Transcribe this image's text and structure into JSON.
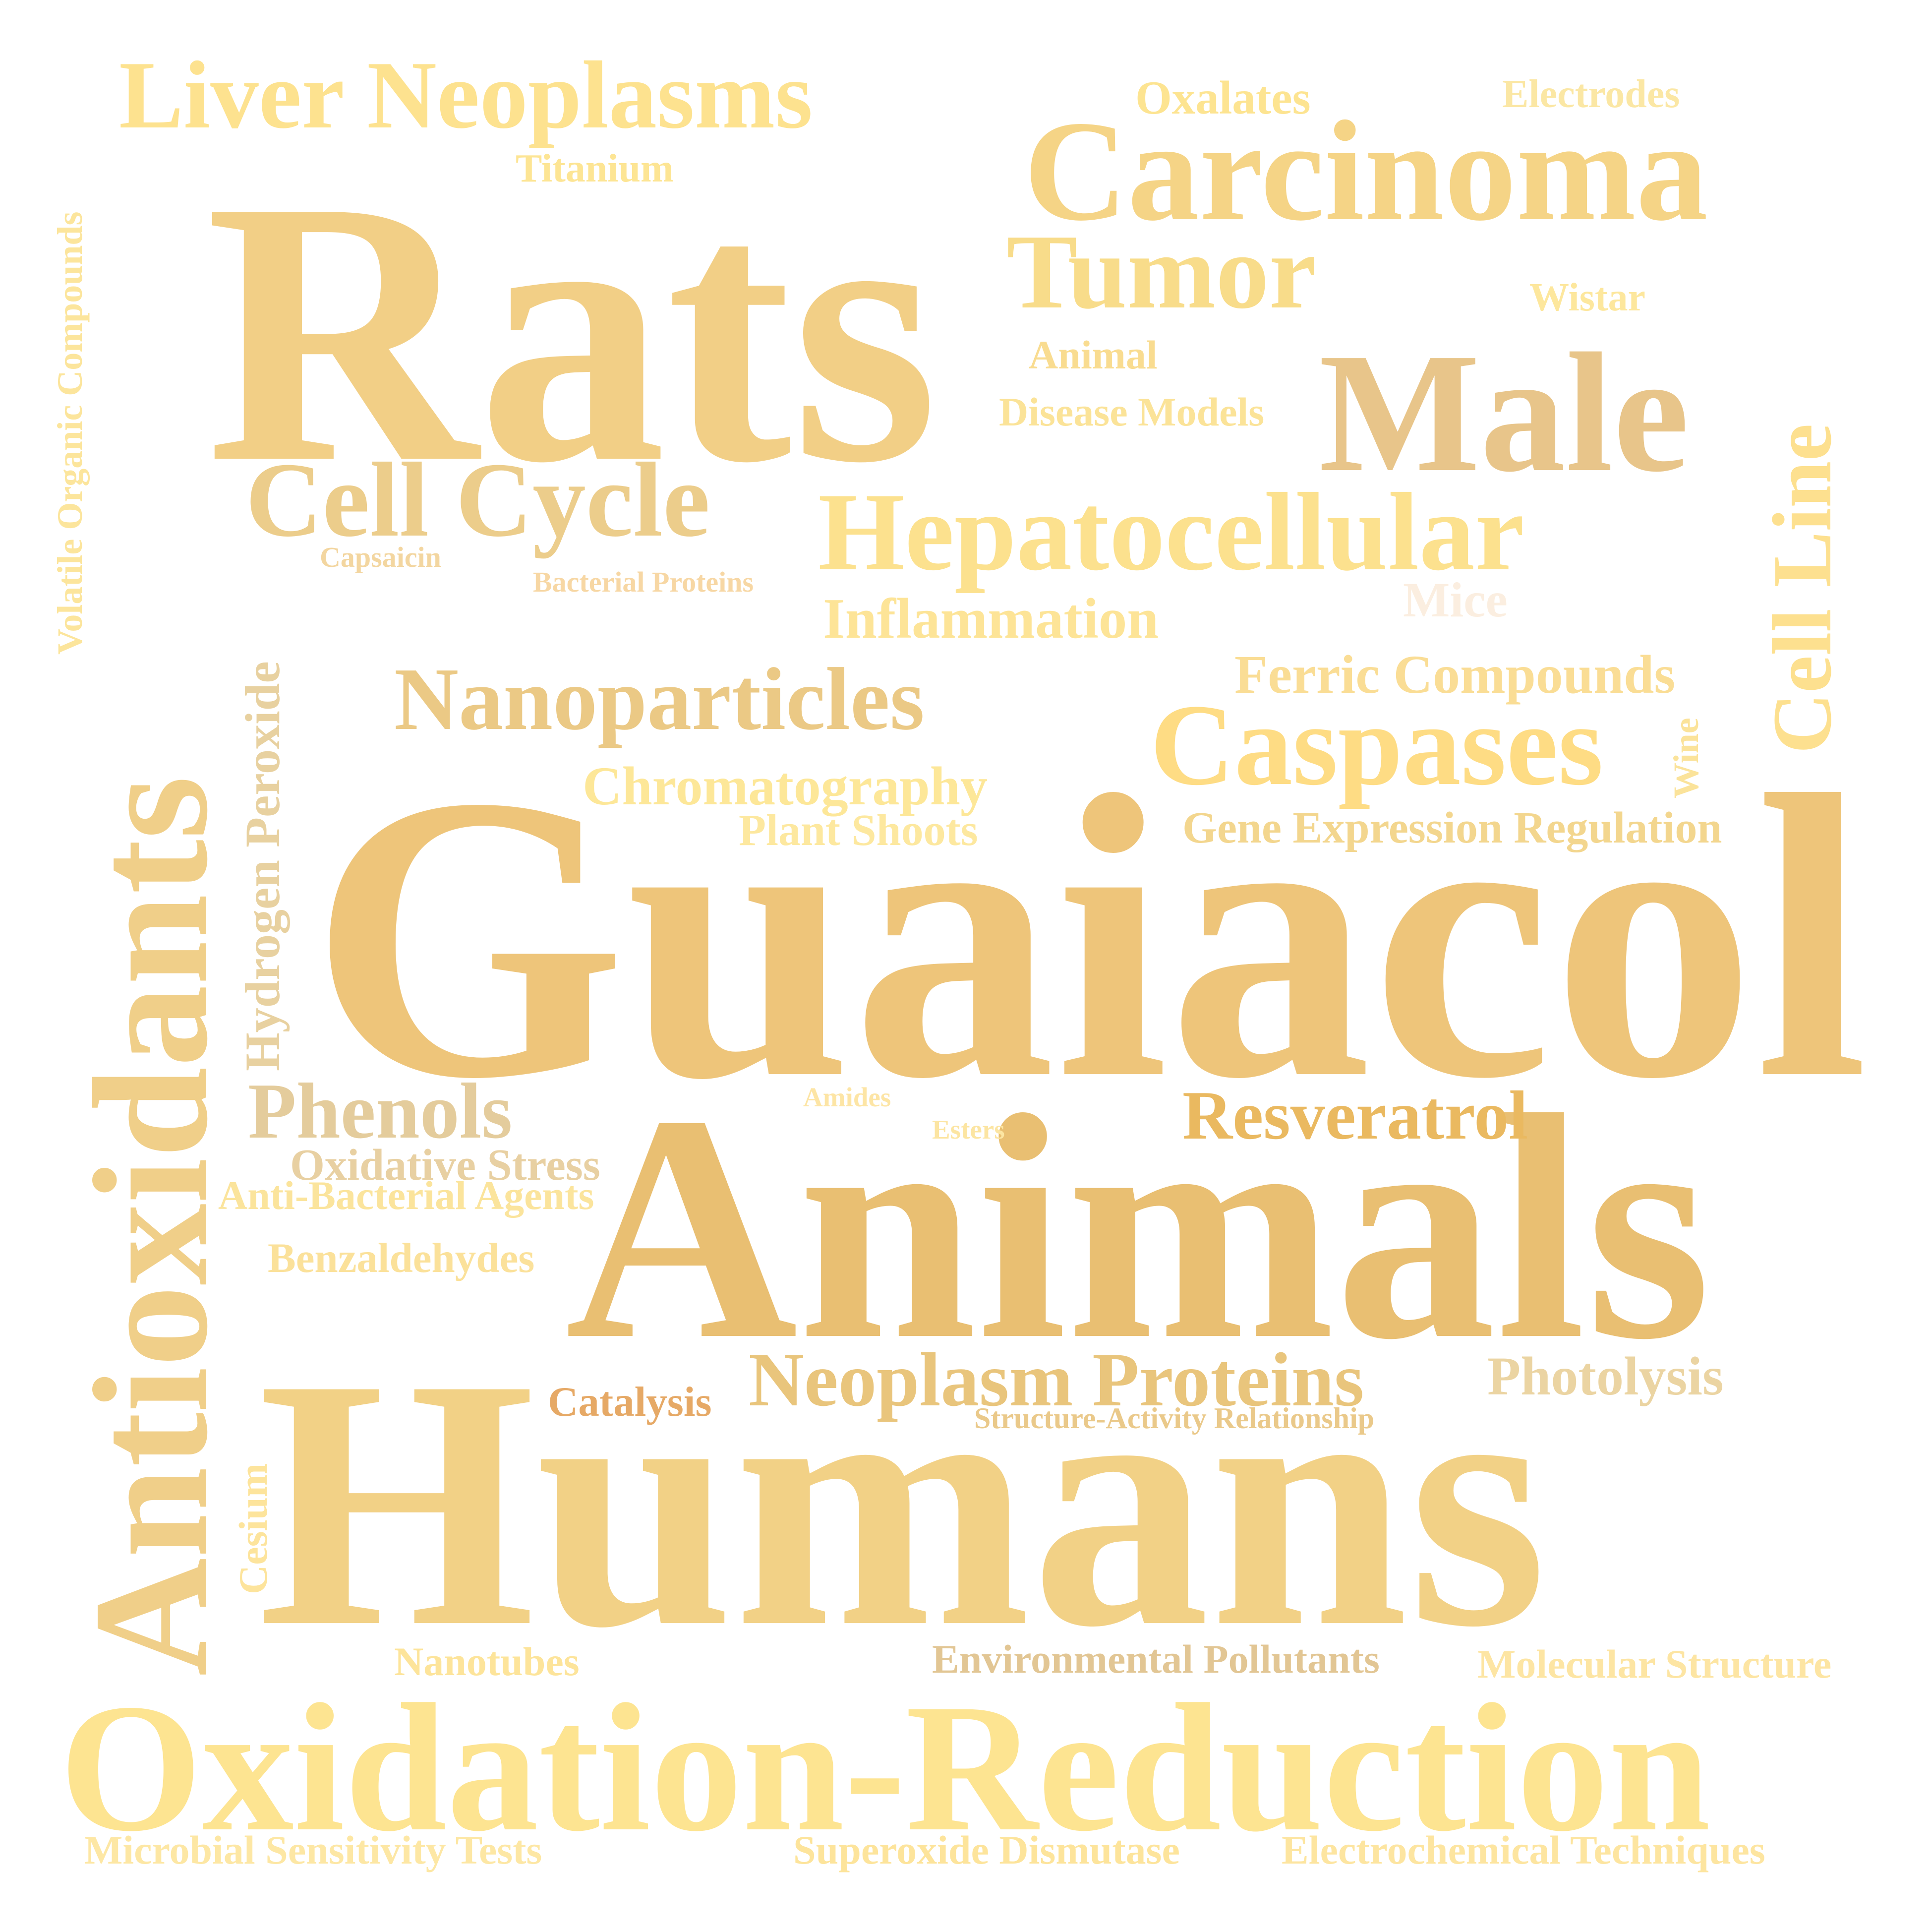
{
  "words": {
    "guaiacol": "Guaiacol",
    "rats": "Rats",
    "animals": "Animals",
    "humans": "Humans",
    "oxidation_reduction": "Oxidation-Reduction",
    "antioxidants": "Antioxidants",
    "liver_neoplasms": "Liver Neoplasms",
    "carcinoma": "Carcinoma",
    "tumor": "Tumor",
    "male": "Male",
    "cell_cycle": "Cell Cycle",
    "hepatocellular": "Hepatocellular",
    "cell_line": "Cell Line",
    "nanoparticles": "Nanoparticles",
    "caspases": "Caspases",
    "phenols": "Phenols",
    "resveratrol": "Resveratrol",
    "neoplasm_proteins": "Neoplasm Proteins",
    "oxalates": "Oxalates",
    "electrodes": "Electrodes",
    "titanium": "Titanium",
    "wistar": "Wistar",
    "animal": "Animal",
    "disease_models": "Disease Models",
    "capsaicin": "Capsaicin",
    "bacterial_proteins": "Bacterial Proteins",
    "mice": "Mice",
    "inflammation": "Inflammation",
    "ferric_compounds": "Ferric Compounds",
    "chromatography": "Chromatography",
    "plant_shoots": "Plant Shoots",
    "gene_expression_regulation": "Gene Expression Regulation",
    "wine": "Wine",
    "hydrogen_peroxide": "Hydrogen Peroxide",
    "volatile_organic_compounds": "Volatile Organic Compounds",
    "amides": "Amides",
    "esters": "Esters",
    "oxidative_stress": "Oxidative Stress",
    "anti_bacterial_agents": "Anti-Bacterial Agents",
    "benzaldehydes": "Benzaldehydes",
    "photolysis": "Photolysis",
    "catalysis": "Catalysis",
    "structure_activity_relationship": "Structure-Activity Relationship",
    "cesium": "Cesium",
    "nanotubes": "Nanotubes",
    "environmental_pollutants": "Environmental Pollutants",
    "molecular_structure": "Molecular Structure",
    "microbial_sensitivity_tests": "Microbial Sensitivity Tests",
    "superoxide_dismutase": "Superoxide Dismutase",
    "electrochemical_techniques": "Electrochemical Techniques"
  },
  "colors": {
    "background": "#ffffff",
    "palette": [
      "#f2cf86",
      "#eec57a",
      "#fde491",
      "#e8c58a",
      "#eab960",
      "#e6a966",
      "#fbeee0"
    ]
  }
}
